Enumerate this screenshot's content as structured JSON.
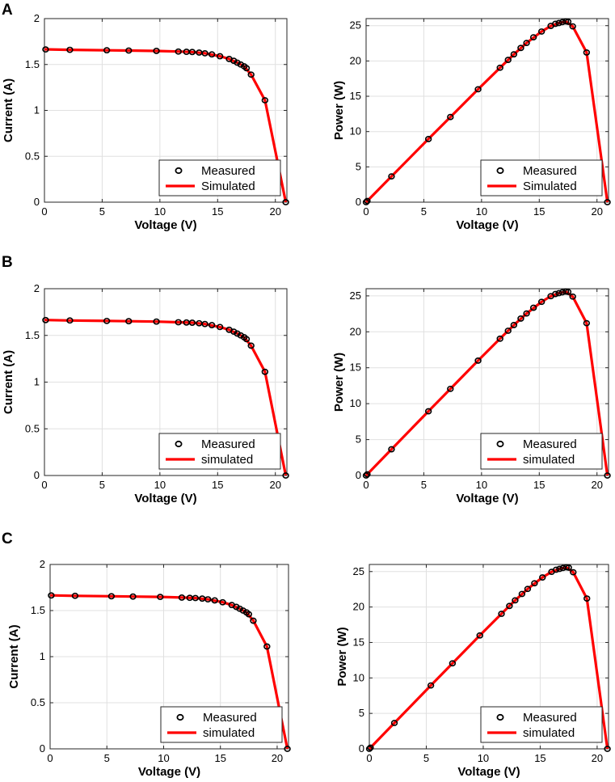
{
  "panels": [
    {
      "letter": "A",
      "charts": [
        {
          "type": "line",
          "title": "",
          "xlabel": "Voltage (V)",
          "ylabel": "Current (A)",
          "xlim": [
            0,
            21
          ],
          "ylim": [
            0,
            2
          ],
          "xticks": [
            0,
            5,
            10,
            15,
            20
          ],
          "yticks": [
            0,
            0.5,
            1,
            1.5,
            2
          ],
          "grid": true,
          "legend_position": "bottom-right",
          "legend": [
            "Measured",
            "Simulated"
          ],
          "series_ref": "iv"
        },
        {
          "type": "line",
          "title": "",
          "xlabel": "Voltage (V)",
          "ylabel": "Power (W)",
          "xlim": [
            0,
            21
          ],
          "ylim": [
            0,
            26
          ],
          "xticks": [
            0,
            5,
            10,
            15,
            20
          ],
          "yticks": [
            0,
            5,
            10,
            15,
            20,
            25
          ],
          "grid": true,
          "legend_position": "bottom-right",
          "legend": [
            "Measured",
            "Simulated"
          ],
          "series_ref": "pv"
        }
      ]
    },
    {
      "letter": "B",
      "charts": [
        {
          "type": "line",
          "title": "",
          "xlabel": "Voltage (V)",
          "ylabel": "Current (A)",
          "xlim": [
            0,
            21
          ],
          "ylim": [
            0,
            2
          ],
          "xticks": [
            0,
            5,
            10,
            15,
            20
          ],
          "yticks": [
            0,
            0.5,
            1,
            1.5,
            2
          ],
          "grid": true,
          "legend_position": "bottom-right",
          "legend": [
            "Measured",
            "simulated"
          ],
          "series_ref": "iv"
        },
        {
          "type": "line",
          "title": "",
          "xlabel": "Voltage (V)",
          "ylabel": "Power (W)",
          "xlim": [
            0,
            21
          ],
          "ylim": [
            0,
            26
          ],
          "xticks": [
            0,
            5,
            10,
            15,
            20
          ],
          "yticks": [
            0,
            5,
            10,
            15,
            20,
            25
          ],
          "grid": true,
          "legend_position": "bottom-right",
          "legend": [
            "Measured",
            "simulated"
          ],
          "series_ref": "pv"
        }
      ]
    },
    {
      "letter": "C",
      "charts": [
        {
          "type": "line",
          "title": "",
          "xlabel": "Voltage (V)",
          "ylabel": "Current (A)",
          "xlim": [
            0,
            21
          ],
          "ylim": [
            0,
            2
          ],
          "xticks": [
            0,
            5,
            10,
            15,
            20
          ],
          "yticks": [
            0,
            0.5,
            1,
            1.5,
            2
          ],
          "grid": true,
          "legend_position": "bottom-right",
          "legend": [
            "Measured",
            "simulated"
          ],
          "series_ref": "iv"
        },
        {
          "type": "line",
          "title": "",
          "xlabel": "Voltage (V)",
          "ylabel": "Power (W)",
          "xlim": [
            0,
            21
          ],
          "ylim": [
            0,
            26
          ],
          "xticks": [
            0,
            5,
            10,
            15,
            20
          ],
          "yticks": [
            0,
            5,
            10,
            15,
            20,
            25
          ],
          "grid": true,
          "legend_position": "bottom-right",
          "legend": [
            "Measured",
            "simulated"
          ],
          "series_ref": "pv"
        }
      ]
    }
  ],
  "chart_data": {
    "type": "line",
    "series": {
      "iv": {
        "measured": {
          "x": [
            0.1,
            2.2,
            5.4,
            7.3,
            9.7,
            11.6,
            12.3,
            12.8,
            13.4,
            13.9,
            14.5,
            15.2,
            16.0,
            16.4,
            16.7,
            17.0,
            17.3,
            17.5,
            17.9,
            19.1,
            20.9
          ],
          "y": [
            1.664,
            1.66,
            1.655,
            1.652,
            1.648,
            1.641,
            1.638,
            1.636,
            1.63,
            1.622,
            1.61,
            1.59,
            1.56,
            1.54,
            1.52,
            1.5,
            1.48,
            1.46,
            1.39,
            1.11,
            0.0
          ]
        },
        "simulated": {
          "x": [
            0,
            2.2,
            5.4,
            7.3,
            9.7,
            11.6,
            12.8,
            13.9,
            15.2,
            16.0,
            16.7,
            17.3,
            17.9,
            19.1,
            20.9
          ],
          "y": [
            1.665,
            1.66,
            1.655,
            1.652,
            1.648,
            1.641,
            1.636,
            1.622,
            1.59,
            1.56,
            1.52,
            1.48,
            1.39,
            1.11,
            0.0
          ]
        }
      },
      "pv": {
        "measured": {
          "x": [
            0.0,
            0.1,
            2.2,
            5.4,
            7.3,
            9.7,
            11.6,
            12.3,
            12.8,
            13.4,
            13.9,
            14.5,
            15.2,
            16.0,
            16.4,
            16.7,
            17.0,
            17.3,
            17.5,
            17.9,
            19.1,
            20.9
          ],
          "y": [
            0.0,
            0.17,
            3.65,
            8.94,
            12.06,
            15.99,
            19.04,
            20.15,
            20.94,
            21.84,
            22.55,
            23.35,
            24.17,
            24.96,
            25.26,
            25.38,
            25.5,
            25.6,
            25.55,
            24.9,
            21.2,
            0.0
          ]
        },
        "simulated": {
          "x": [
            0,
            2.2,
            5.4,
            7.3,
            9.7,
            11.6,
            12.8,
            13.9,
            15.2,
            16.0,
            16.7,
            17.3,
            17.9,
            19.1,
            20.9
          ],
          "y": [
            0,
            3.65,
            8.94,
            12.06,
            15.99,
            19.04,
            20.94,
            22.55,
            24.17,
            24.96,
            25.38,
            25.6,
            24.9,
            21.2,
            0.0
          ]
        }
      }
    }
  },
  "colors": {
    "simulated": "#ff0000",
    "measured": "#000000",
    "grid": "#e0e0e0",
    "axis": "#262626"
  }
}
